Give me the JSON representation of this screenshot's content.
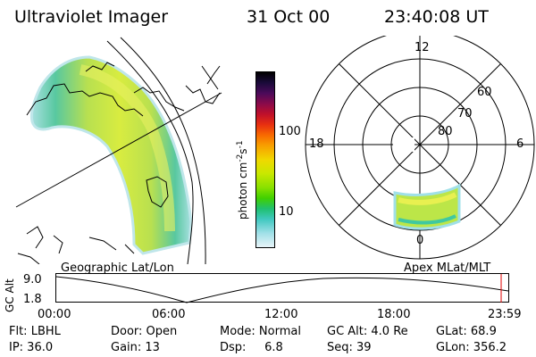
{
  "header": {
    "instrument": "Ultraviolet Imager",
    "date": "31 Oct 00",
    "time": "23:40:08 UT"
  },
  "map_left": {
    "caption": "Geographic Lat/Lon"
  },
  "map_right": {
    "caption": "Apex MLat/MLT",
    "mlt_labels": {
      "top": "12",
      "left": "18",
      "right": "6",
      "bottom": "0"
    },
    "lat_labels": [
      "60",
      "70",
      "80"
    ]
  },
  "colorbar": {
    "unit_label": "photon cm",
    "unit_exp1": "-2",
    "unit_s": "s",
    "unit_exp2": "-1",
    "tick_labels": [
      "100",
      "10"
    ],
    "colors": [
      "#000000",
      "#1a0a3a",
      "#4b0a5a",
      "#8a0a4a",
      "#c0102a",
      "#e83010",
      "#f86a00",
      "#f8a000",
      "#f0d800",
      "#c8e800",
      "#88e000",
      "#40d000",
      "#20c070",
      "#40c8c0",
      "#a0e0e8",
      "#e8f4f8"
    ]
  },
  "timeline": {
    "axis_label": "GC Alt",
    "y_ticks": [
      "9.0",
      "1.8"
    ],
    "x_ticks": [
      "00:00",
      "06:00",
      "12:00",
      "18:00",
      "23:59"
    ],
    "marker_color": "#e00000"
  },
  "footer": {
    "row1": [
      "Flt: LBHL",
      "Door: Open",
      "Mode: Normal",
      "GC Alt: 4.0 Re",
      "GLat: 68.9"
    ],
    "row2": [
      "IP: 36.0",
      "Gain: 13",
      "Dsp:     6.8",
      "Seq: 39",
      "GLon: 356.2"
    ]
  }
}
